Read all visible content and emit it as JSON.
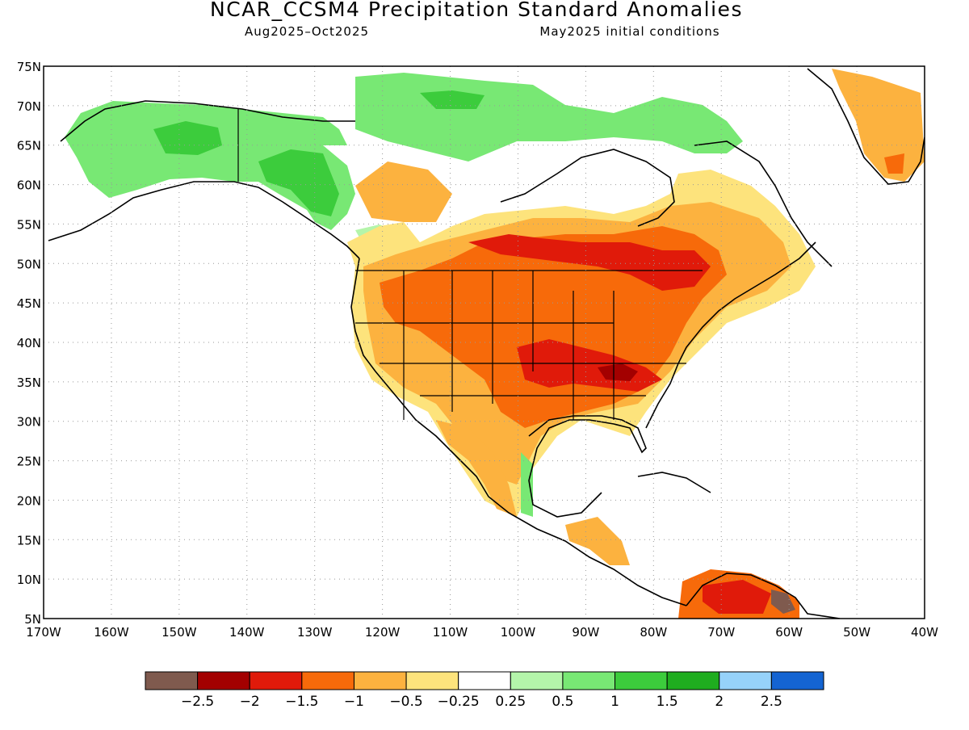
{
  "title": "NCAR_CCSM4 Precipitation Standard Anomalies",
  "subtitle_left": "Aug2025–Oct2025",
  "subtitle_right": "May2025 initial conditions",
  "map": {
    "lon_range": [
      -170,
      -40
    ],
    "lat_range": [
      5,
      75
    ],
    "grid": true,
    "lat_ticks": [
      "75N",
      "70N",
      "65N",
      "60N",
      "55N",
      "50N",
      "45N",
      "40N",
      "35N",
      "30N",
      "25N",
      "20N",
      "15N",
      "10N",
      "5N"
    ],
    "lon_ticks": [
      "170W",
      "160W",
      "150W",
      "140W",
      "130W",
      "120W",
      "110W",
      "100W",
      "90W",
      "80W",
      "70W",
      "60W",
      "50W",
      "40W"
    ]
  },
  "colorbar": {
    "colors": [
      "#7f5a4e",
      "#a30000",
      "#e01a0a",
      "#f76a0a",
      "#fcb23f",
      "#fde37c",
      "#ffffff",
      "#b4f5aa",
      "#78e874",
      "#3ccc3c",
      "#1fad1f",
      "#96d2fa",
      "#1464d2"
    ],
    "labels": [
      "−2.5",
      "−2",
      "−1.5",
      "−1",
      "−0.5",
      "−0.25",
      "0.25",
      "0.5",
      "1",
      "1.5",
      "2",
      "2.5"
    ]
  }
}
